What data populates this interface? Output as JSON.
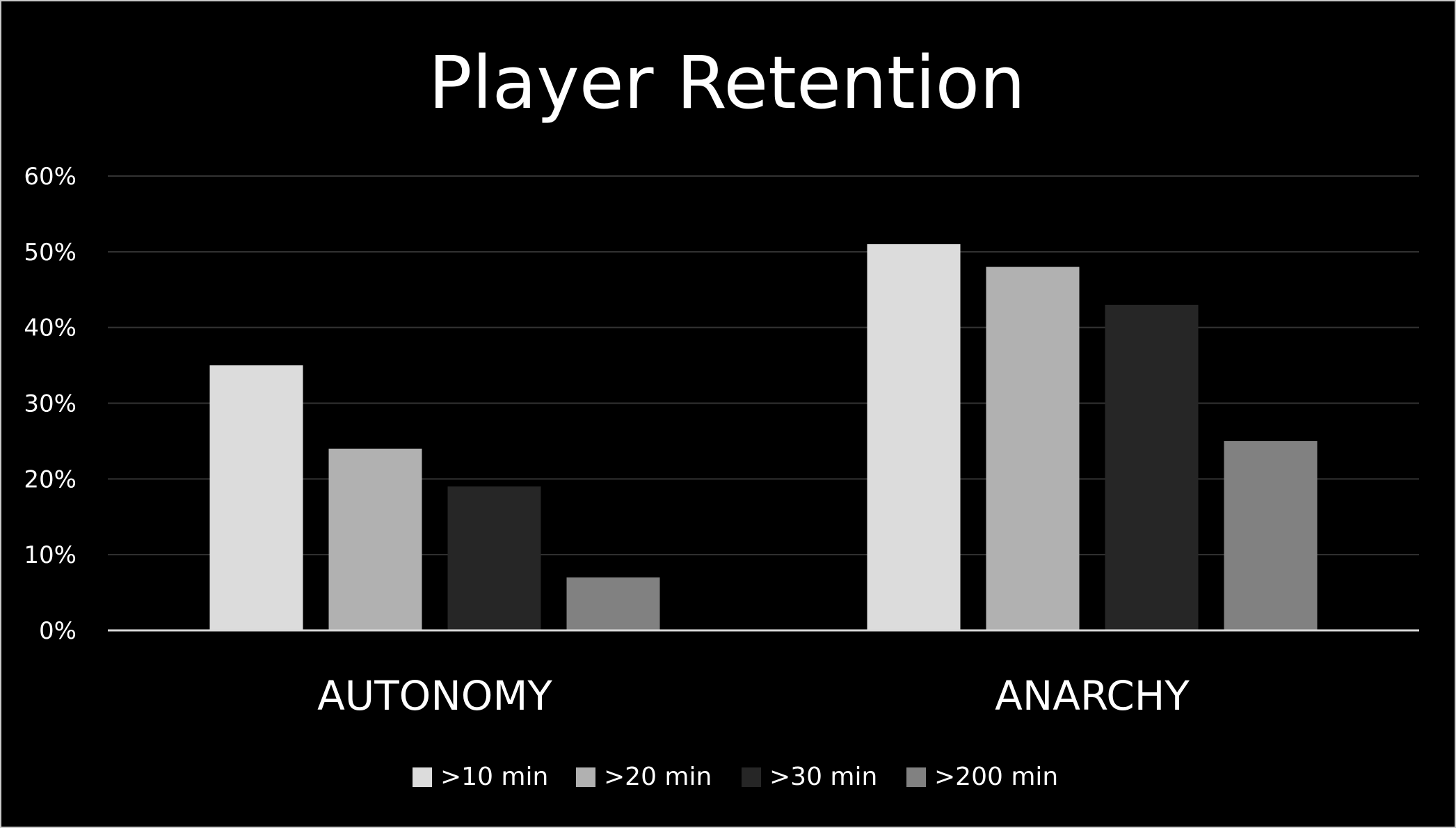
{
  "chart_data": {
    "type": "bar",
    "title": "Player Retention",
    "xlabel": "",
    "ylabel": "",
    "categories": [
      "AUTONOMY",
      "ANARCHY"
    ],
    "series": [
      {
        "name": ">10 min",
        "values": [
          35,
          51
        ],
        "color": "#dcdcdc"
      },
      {
        "name": ">20 min",
        "values": [
          24,
          48
        ],
        "color": "#b1b1b1"
      },
      {
        "name": ">30 min",
        "values": [
          19,
          43
        ],
        "color": "#262626"
      },
      {
        "name": ">200 min",
        "values": [
          7,
          25
        ],
        "color": "#818181"
      }
    ],
    "ylim": [
      0,
      60
    ],
    "yticks": [
      "0%",
      "10%",
      "20%",
      "30%",
      "40%",
      "50%",
      "60%"
    ],
    "grid": true,
    "legend_position": "bottom",
    "background": "#000000",
    "gridline_color": "#333333",
    "baseline_color": "#d9d9d9"
  }
}
